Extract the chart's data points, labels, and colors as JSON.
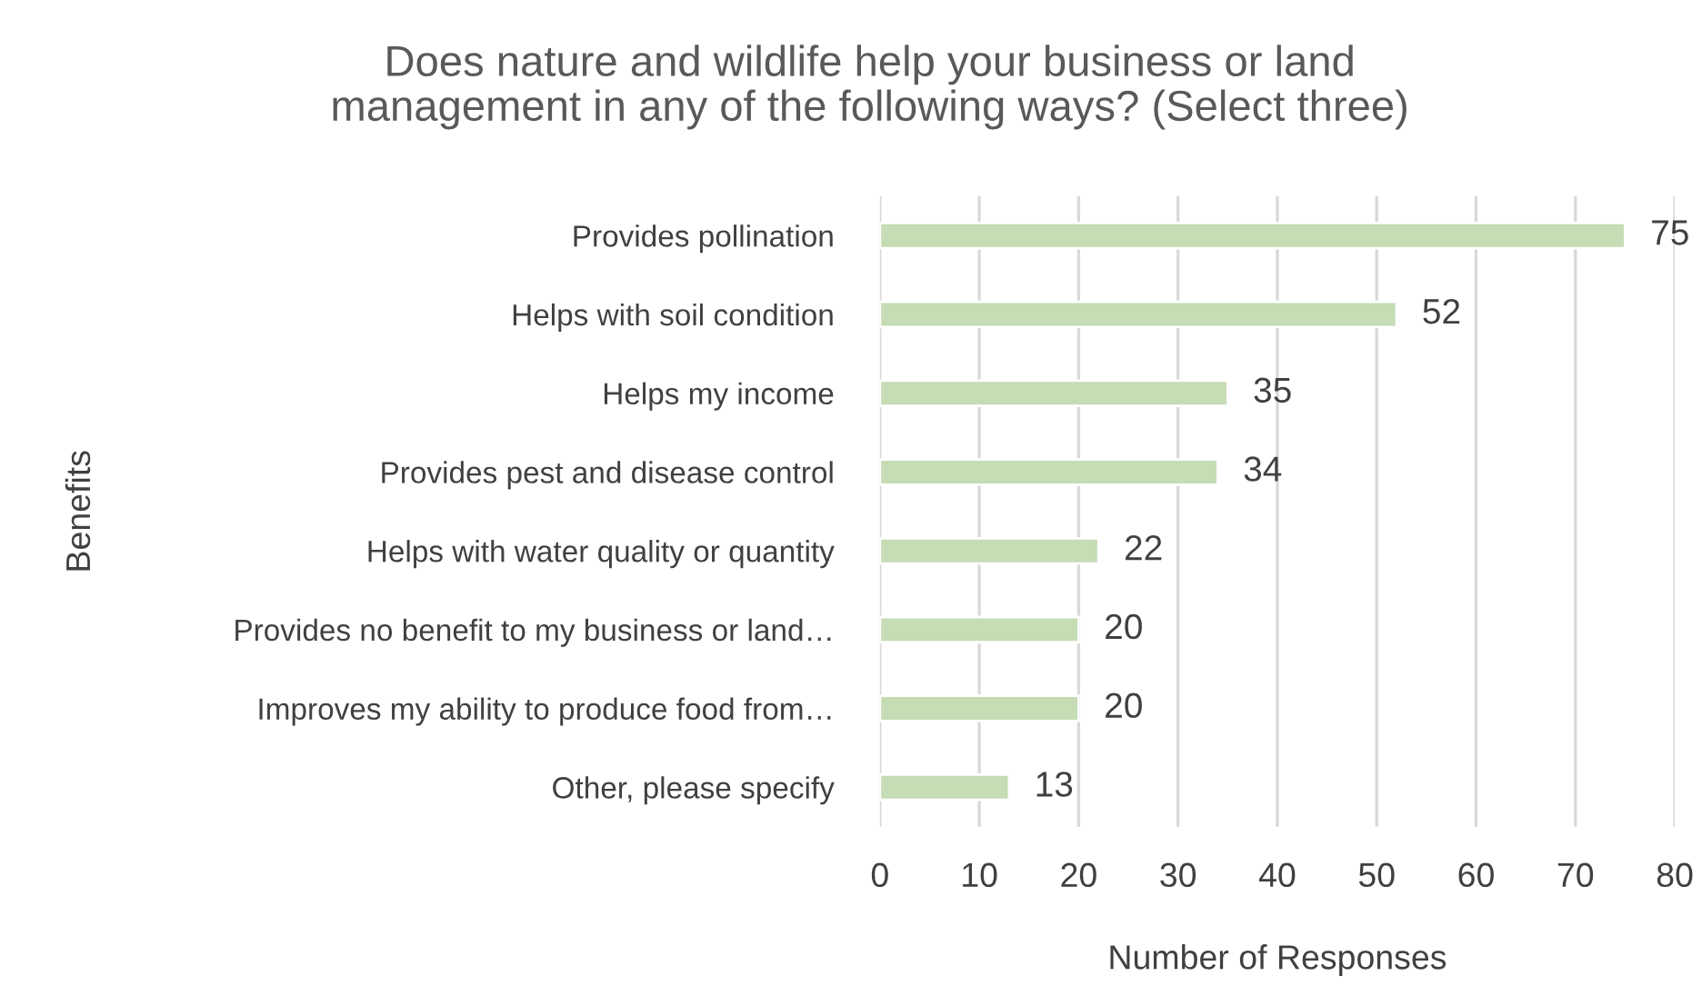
{
  "chart_data": {
    "type": "bar",
    "orientation": "horizontal",
    "title": "Does nature and wildlife help your business or land\nmanagement in any of the following ways? (Select three)",
    "xlabel": "Number of Responses",
    "ylabel": "Benefits",
    "categories": [
      "Provides pollination",
      "Helps with soil condition",
      "Helps my income",
      "Provides pest and disease control",
      "Helps with water quality or quantity",
      "Provides no benefit to my business or land…",
      "Improves my ability to produce food from…",
      "Other, please specify"
    ],
    "values": [
      75,
      52,
      35,
      34,
      22,
      20,
      20,
      13
    ],
    "color": "#c5dcb5",
    "xlim": [
      0,
      80
    ],
    "xticks": [
      0,
      10,
      20,
      30,
      40,
      50,
      60,
      70,
      80
    ],
    "grid": "x",
    "data_labels": true
  }
}
